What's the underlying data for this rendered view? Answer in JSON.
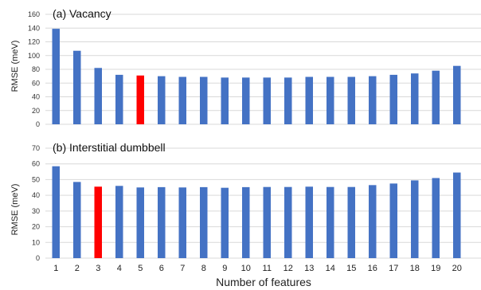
{
  "chart_data": {
    "shared_xlabel": "Number of features",
    "colors": {
      "bar": "#4472c4",
      "highlight": "#ff0000",
      "grid": "#d9d9d9"
    },
    "panels": [
      {
        "type": "bar",
        "title": "(a) Vacancy",
        "ylabel": "RMSE (meV)",
        "ylim": [
          0,
          160
        ],
        "yticks": [
          0,
          20,
          40,
          60,
          80,
          100,
          120,
          140,
          160
        ],
        "grid": true,
        "categories": [
          "1",
          "2",
          "3",
          "4",
          "5",
          "6",
          "7",
          "8",
          "9",
          "10",
          "11",
          "12",
          "13",
          "14",
          "15",
          "16",
          "17",
          "18",
          "19",
          "20"
        ],
        "values": [
          139,
          107,
          82,
          72,
          71,
          70,
          69,
          69,
          68,
          68,
          68,
          68,
          69,
          69,
          69,
          70,
          72,
          74,
          78,
          85
        ],
        "highlight_index": 4
      },
      {
        "type": "bar",
        "title": "(b) Interstitial dumbbell",
        "ylabel": "RMSE (meV)",
        "ylim": [
          0,
          70
        ],
        "yticks": [
          0,
          10,
          20,
          30,
          40,
          50,
          60,
          70
        ],
        "grid": true,
        "categories": [
          "1",
          "2",
          "3",
          "4",
          "5",
          "6",
          "7",
          "8",
          "9",
          "10",
          "11",
          "12",
          "13",
          "14",
          "15",
          "16",
          "17",
          "18",
          "19",
          "20"
        ],
        "values": [
          58.5,
          48.5,
          45.5,
          46,
          45,
          45.2,
          45,
          45.2,
          44.8,
          45.2,
          45.3,
          45.3,
          45.5,
          45.3,
          45.3,
          46.5,
          47.5,
          49.5,
          51,
          54.5
        ],
        "highlight_index": 2
      }
    ]
  }
}
